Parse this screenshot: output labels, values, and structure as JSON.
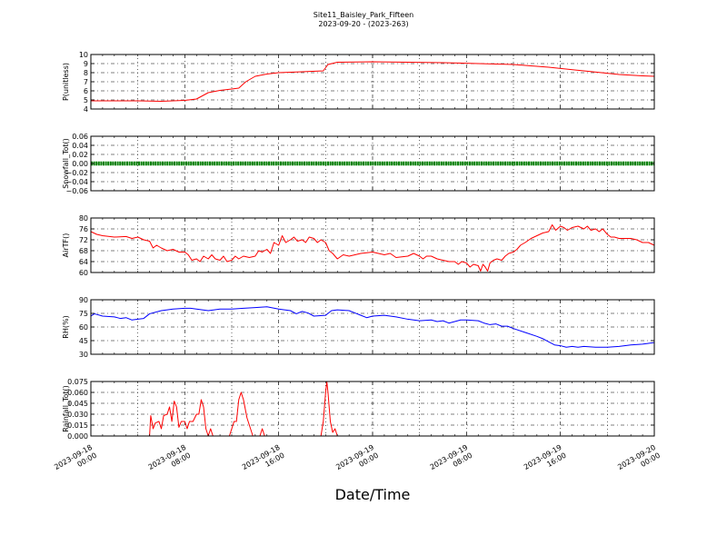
{
  "figure": {
    "title_line1": "Site11_Baisley_Park_Fifteen",
    "title_line2": "2023-09-20 - (2023-263)",
    "xlabel": "Date/Time",
    "x_tick_labels": [
      [
        "2023-09-18",
        "00:00"
      ],
      [
        "2023-09-18",
        "08:00"
      ],
      [
        "2023-09-18",
        "16:00"
      ],
      [
        "2023-09-19",
        "00:00"
      ],
      [
        "2023-09-19",
        "08:00"
      ],
      [
        "2023-09-19",
        "16:00"
      ],
      [
        "2023-09-20",
        "00:00"
      ]
    ]
  },
  "chart_data": [
    {
      "type": "line",
      "ylabel": "P(unitless)",
      "color": "#ff0000",
      "ylim": [
        4,
        10
      ],
      "yticks": [
        "4",
        "5",
        "6",
        "7",
        "8",
        "9",
        "10"
      ],
      "grid": true,
      "xlim_hours": [
        0,
        48
      ],
      "points": [
        [
          0,
          4.9
        ],
        [
          4,
          4.9
        ],
        [
          6,
          4.85
        ],
        [
          8,
          4.95
        ],
        [
          9,
          5.1
        ],
        [
          10,
          5.8
        ],
        [
          11,
          6.05
        ],
        [
          12,
          6.2
        ],
        [
          12.6,
          6.3
        ],
        [
          13.2,
          7.0
        ],
        [
          14,
          7.6
        ],
        [
          15,
          7.85
        ],
        [
          16,
          8.0
        ],
        [
          18,
          8.1
        ],
        [
          19.8,
          8.2
        ],
        [
          20.2,
          8.9
        ],
        [
          21,
          9.15
        ],
        [
          24,
          9.2
        ],
        [
          27,
          9.15
        ],
        [
          30,
          9.1
        ],
        [
          33,
          9.0
        ],
        [
          36,
          8.9
        ],
        [
          39,
          8.6
        ],
        [
          42,
          8.2
        ],
        [
          45,
          7.8
        ],
        [
          47,
          7.65
        ],
        [
          48,
          7.6
        ]
      ]
    },
    {
      "type": "line",
      "ylabel": "Snowfall_Tot()",
      "color": "#008000",
      "ylim": [
        -0.06,
        0.06
      ],
      "yticks": [
        "−0.06",
        "−0.04",
        "−0.02",
        "0.00",
        "0.02",
        "0.04",
        "0.06"
      ],
      "grid": true,
      "xlim_hours": [
        0,
        48
      ],
      "points": [
        [
          0,
          0
        ],
        [
          48,
          0
        ]
      ]
    },
    {
      "type": "line",
      "ylabel": "AirTF()",
      "color": "#ff0000",
      "ylim": [
        60,
        80
      ],
      "yticks": [
        "60",
        "64",
        "68",
        "72",
        "76",
        "80"
      ],
      "grid": true,
      "xlim_hours": [
        0,
        48
      ],
      "points": [
        [
          0,
          75
        ],
        [
          0.5,
          74
        ],
        [
          1,
          73.5
        ],
        [
          2,
          73
        ],
        [
          3,
          73.2
        ],
        [
          3.5,
          72.5
        ],
        [
          4,
          73
        ],
        [
          4.5,
          72
        ],
        [
          5,
          71.5
        ],
        [
          5.3,
          69
        ],
        [
          5.6,
          70
        ],
        [
          6,
          69
        ],
        [
          6.5,
          68
        ],
        [
          7,
          68.5
        ],
        [
          7.5,
          67.5
        ],
        [
          8,
          67.5
        ],
        [
          8.3,
          66.5
        ],
        [
          8.6,
          64.5
        ],
        [
          9,
          65
        ],
        [
          9.3,
          64
        ],
        [
          9.6,
          66
        ],
        [
          10,
          65
        ],
        [
          10.3,
          66.5
        ],
        [
          10.6,
          65
        ],
        [
          11,
          64.5
        ],
        [
          11.3,
          66
        ],
        [
          11.6,
          64
        ],
        [
          12,
          64.5
        ],
        [
          12.3,
          66
        ],
        [
          12.6,
          65
        ],
        [
          13,
          66
        ],
        [
          13.5,
          65.5
        ],
        [
          14,
          66
        ],
        [
          14.3,
          68
        ],
        [
          14.6,
          67.5
        ],
        [
          15,
          68.5
        ],
        [
          15.3,
          67
        ],
        [
          15.6,
          71
        ],
        [
          16,
          70
        ],
        [
          16.3,
          73.5
        ],
        [
          16.6,
          71
        ],
        [
          17,
          72
        ],
        [
          17.3,
          73
        ],
        [
          17.6,
          71.5
        ],
        [
          18,
          72
        ],
        [
          18.3,
          71
        ],
        [
          18.6,
          73
        ],
        [
          19,
          72.5
        ],
        [
          19.3,
          71
        ],
        [
          19.6,
          72
        ],
        [
          20,
          71
        ],
        [
          20.3,
          68
        ],
        [
          20.6,
          67
        ],
        [
          21,
          65
        ],
        [
          21.5,
          66.5
        ],
        [
          22,
          66
        ],
        [
          23,
          67
        ],
        [
          24,
          67.5
        ],
        [
          25,
          66.5
        ],
        [
          25.5,
          67
        ],
        [
          26,
          65.5
        ],
        [
          27,
          66
        ],
        [
          27.5,
          67
        ],
        [
          28,
          66
        ],
        [
          28.3,
          65
        ],
        [
          28.6,
          66
        ],
        [
          29,
          66
        ],
        [
          29.5,
          65
        ],
        [
          30,
          64.5
        ],
        [
          30.5,
          64
        ],
        [
          31,
          64
        ],
        [
          31.3,
          63
        ],
        [
          31.6,
          64
        ],
        [
          32,
          63.5
        ],
        [
          32.3,
          62
        ],
        [
          32.6,
          63
        ],
        [
          33,
          62.5
        ],
        [
          33.2,
          60.5
        ],
        [
          33.4,
          63
        ],
        [
          33.6,
          62
        ],
        [
          33.8,
          60.5
        ],
        [
          34,
          63.5
        ],
        [
          34.3,
          64.5
        ],
        [
          34.6,
          65
        ],
        [
          35,
          64.5
        ],
        [
          35.3,
          66
        ],
        [
          35.6,
          67
        ],
        [
          36,
          67.5
        ],
        [
          36.3,
          68.5
        ],
        [
          36.6,
          70
        ],
        [
          37,
          71
        ],
        [
          37.5,
          72.5
        ],
        [
          38,
          73.5
        ],
        [
          38.5,
          74.5
        ],
        [
          39,
          75
        ],
        [
          39.3,
          77.5
        ],
        [
          39.6,
          75.5
        ],
        [
          40,
          77
        ],
        [
          40.3,
          76.5
        ],
        [
          40.6,
          75.5
        ],
        [
          41,
          76.5
        ],
        [
          41.5,
          77
        ],
        [
          42,
          76
        ],
        [
          42.3,
          77
        ],
        [
          42.6,
          75.5
        ],
        [
          43,
          76
        ],
        [
          43.3,
          75
        ],
        [
          43.6,
          76
        ],
        [
          44,
          74
        ],
        [
          44.3,
          73
        ],
        [
          44.6,
          73
        ],
        [
          45,
          72.5
        ],
        [
          46,
          72.5
        ],
        [
          46.5,
          72
        ],
        [
          47,
          71
        ],
        [
          47.5,
          71
        ],
        [
          48,
          70
        ]
      ]
    },
    {
      "type": "line",
      "ylabel": "RH(%)",
      "color": "#0000ff",
      "ylim": [
        30,
        100
      ],
      "yticks": [
        "30",
        "45",
        "60",
        "75",
        "90"
      ],
      "grid": true,
      "xlim_hours": [
        0,
        48
      ],
      "points": [
        [
          0,
          79
        ],
        [
          0.3,
          82
        ],
        [
          1,
          79
        ],
        [
          2,
          78
        ],
        [
          2.5,
          76
        ],
        [
          3,
          77
        ],
        [
          3.5,
          74
        ],
        [
          4,
          75
        ],
        [
          4.5,
          76
        ],
        [
          5,
          82
        ],
        [
          6,
          86
        ],
        [
          7,
          88
        ],
        [
          8,
          89
        ],
        [
          8.5,
          89
        ],
        [
          9,
          88
        ],
        [
          10,
          86
        ],
        [
          11,
          88
        ],
        [
          12,
          88
        ],
        [
          13,
          89
        ],
        [
          14,
          90
        ],
        [
          15,
          91
        ],
        [
          16,
          88
        ],
        [
          17,
          86
        ],
        [
          17.5,
          82
        ],
        [
          18,
          85
        ],
        [
          18.5,
          83
        ],
        [
          19,
          79
        ],
        [
          20,
          80
        ],
        [
          20.5,
          86
        ],
        [
          21,
          87
        ],
        [
          22,
          86
        ],
        [
          22.5,
          83
        ],
        [
          23,
          80
        ],
        [
          23.5,
          77
        ],
        [
          24,
          79
        ],
        [
          25,
          80
        ],
        [
          26,
          78
        ],
        [
          27,
          75
        ],
        [
          28,
          73
        ],
        [
          29,
          74
        ],
        [
          29.5,
          72
        ],
        [
          30,
          73
        ],
        [
          30.5,
          70
        ],
        [
          31,
          72
        ],
        [
          31.5,
          74
        ],
        [
          32,
          74
        ],
        [
          33,
          73
        ],
        [
          33.5,
          70
        ],
        [
          34,
          68
        ],
        [
          34.5,
          69
        ],
        [
          35,
          66
        ],
        [
          35.5,
          66
        ],
        [
          36,
          63
        ],
        [
          37,
          58
        ],
        [
          38,
          53
        ],
        [
          38.5,
          50
        ],
        [
          39,
          46
        ],
        [
          39.5,
          42
        ],
        [
          40,
          41
        ],
        [
          40.5,
          39
        ],
        [
          41,
          40
        ],
        [
          41.5,
          39
        ],
        [
          42,
          40
        ],
        [
          43,
          39
        ],
        [
          44,
          39
        ],
        [
          45,
          40
        ],
        [
          46,
          42
        ],
        [
          47,
          43
        ],
        [
          48,
          45
        ]
      ]
    },
    {
      "type": "line",
      "ylabel": "Rainfall_Tot()",
      "color": "#ff0000",
      "ylim": [
        0,
        0.075
      ],
      "yticks": [
        "0.000",
        "0.015",
        "0.030",
        "0.045",
        "0.060",
        "0.075"
      ],
      "grid": true,
      "xlim_hours": [
        0,
        48
      ],
      "points": [
        [
          0,
          0
        ],
        [
          4.8,
          0
        ],
        [
          5,
          0
        ],
        [
          5.1,
          0.028
        ],
        [
          5.3,
          0.01
        ],
        [
          5.5,
          0.018
        ],
        [
          5.8,
          0.02
        ],
        [
          6,
          0.01
        ],
        [
          6.2,
          0.028
        ],
        [
          6.5,
          0.03
        ],
        [
          6.7,
          0.04
        ],
        [
          6.9,
          0.02
        ],
        [
          7.1,
          0.048
        ],
        [
          7.3,
          0.04
        ],
        [
          7.5,
          0.012
        ],
        [
          7.7,
          0.02
        ],
        [
          8,
          0.02
        ],
        [
          8.2,
          0.01
        ],
        [
          8.4,
          0.02
        ],
        [
          8.7,
          0.02
        ],
        [
          9,
          0.03
        ],
        [
          9.2,
          0.03
        ],
        [
          9.4,
          0.05
        ],
        [
          9.6,
          0.04
        ],
        [
          9.8,
          0.01
        ],
        [
          10,
          0
        ],
        [
          10.2,
          0.01
        ],
        [
          10.4,
          0
        ],
        [
          11.8,
          0
        ],
        [
          12,
          0.01
        ],
        [
          12.2,
          0.02
        ],
        [
          12.4,
          0.02
        ],
        [
          12.6,
          0.05
        ],
        [
          12.8,
          0.06
        ],
        [
          13,
          0.05
        ],
        [
          13.3,
          0.025
        ],
        [
          13.6,
          0.01
        ],
        [
          13.8,
          0
        ],
        [
          14.4,
          0
        ],
        [
          14.6,
          0.01
        ],
        [
          14.8,
          0
        ],
        [
          19.6,
          0
        ],
        [
          19.8,
          0.02
        ],
        [
          20,
          0.06
        ],
        [
          20.1,
          0.075
        ],
        [
          20.2,
          0.06
        ],
        [
          20.4,
          0.02
        ],
        [
          20.6,
          0.005
        ],
        [
          20.8,
          0.01
        ],
        [
          21,
          0
        ],
        [
          48,
          0
        ]
      ]
    }
  ]
}
